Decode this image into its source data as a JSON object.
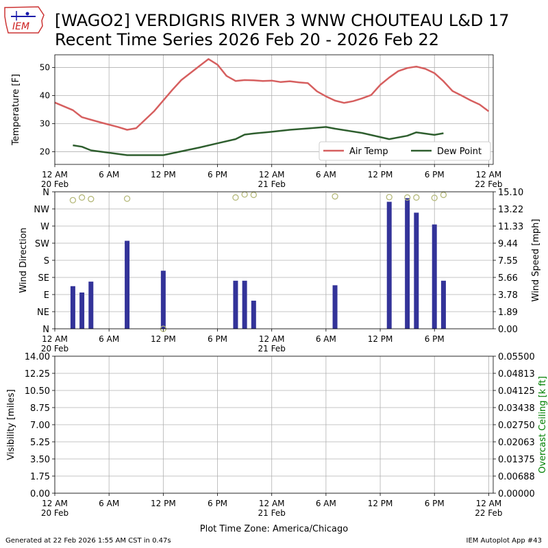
{
  "header": {
    "title_line1": "[WAGO2] VERDIGRIS RIVER 3 WNW CHOUTEAU L&D 17",
    "title_line2": "Recent Time Series 2026 Feb 20 - 2026 Feb 22",
    "logo_text": "IEM"
  },
  "footer": {
    "left": "Generated at 22 Feb 2026 1:55 AM CST in 0.47s",
    "right": "IEM Autoplot App #43"
  },
  "colors": {
    "air_temp": "#d65f5f",
    "dew_point": "#2e5e2e",
    "wind_bar": "#333399",
    "wind_dir_marker": "#b5b97a",
    "ceiling_label": "#008000",
    "grid": "#b0b0b0"
  },
  "chart_data": [
    {
      "type": "line",
      "title": "",
      "ylabel": "Temperature [F]",
      "xlim_hours": [
        0,
        48.5
      ],
      "ylim": [
        15.5,
        54.5
      ],
      "yticks": [
        20,
        30,
        40,
        50
      ],
      "grid": true,
      "legend_position": "lower-right",
      "x_tick_labels": [
        {
          "hour": 0,
          "label": "12 AM",
          "date": "20 Feb"
        },
        {
          "hour": 6,
          "label": "6 AM",
          "date": ""
        },
        {
          "hour": 12,
          "label": "12 PM",
          "date": ""
        },
        {
          "hour": 18,
          "label": "6 PM",
          "date": ""
        },
        {
          "hour": 24,
          "label": "12 AM",
          "date": "21 Feb"
        },
        {
          "hour": 30,
          "label": "6 AM",
          "date": ""
        },
        {
          "hour": 36,
          "label": "12 PM",
          "date": ""
        },
        {
          "hour": 42,
          "label": "6 PM",
          "date": ""
        },
        {
          "hour": 48,
          "label": "12 AM",
          "date": "22 Feb"
        }
      ],
      "series": [
        {
          "name": "Air Temp",
          "x_hours": [
            0,
            2,
            3,
            5,
            7,
            8,
            9,
            11,
            13,
            14,
            16,
            17,
            18,
            19,
            20,
            21,
            22,
            23,
            24,
            25,
            26,
            27,
            28,
            29,
            30,
            31,
            32,
            33,
            34,
            35,
            36,
            37,
            38,
            39,
            40,
            41,
            42,
            43,
            44,
            45,
            46,
            47,
            48
          ],
          "values": [
            37.5,
            34.8,
            32.3,
            30.5,
            28.8,
            27.8,
            28.4,
            34.5,
            42,
            45.5,
            50.5,
            53,
            51,
            47,
            45.2,
            45.5,
            45.4,
            45.2,
            45.3,
            44.8,
            45.1,
            44.7,
            44.4,
            41.5,
            39.7,
            38.2,
            37.4,
            38,
            39,
            40.2,
            43.8,
            46.4,
            48.7,
            49.8,
            50.3,
            49.5,
            48,
            45.1,
            41.6,
            40,
            38.3,
            36.8,
            34.4
          ]
        },
        {
          "name": "Dew Point",
          "x_hours": [
            2,
            3,
            4,
            8,
            12,
            16,
            18,
            20,
            21,
            22,
            24,
            26,
            28,
            30,
            31,
            34,
            37,
            39,
            40,
            42,
            43
          ],
          "values": [
            22.3,
            21.8,
            20.5,
            18.8,
            18.8,
            21.5,
            23,
            24.5,
            26.1,
            26.5,
            27.1,
            27.8,
            28.3,
            28.8,
            28.2,
            26.7,
            24.5,
            25.7,
            26.9,
            26,
            26.6
          ]
        }
      ]
    },
    {
      "type": "bar",
      "title": "",
      "ylabel": "Wind Direction",
      "y2label": "Wind Speed [mph]",
      "xlim_hours": [
        0,
        48.5
      ],
      "direction_ticks": [
        "N",
        "NE",
        "E",
        "SE",
        "S",
        "SW",
        "W",
        "NW",
        "N"
      ],
      "speed_ticks": [
        "0.00",
        "1.89",
        "3.78",
        "5.66",
        "7.55",
        "9.44",
        "11.33",
        "13.22",
        "15.10"
      ],
      "speed_ylim": [
        0,
        15.1
      ],
      "grid": true,
      "x_tick_labels": [
        {
          "hour": 0,
          "label": "12 AM",
          "date": "20 Feb"
        },
        {
          "hour": 6,
          "label": "6 AM",
          "date": ""
        },
        {
          "hour": 12,
          "label": "12 PM",
          "date": ""
        },
        {
          "hour": 18,
          "label": "6 PM",
          "date": ""
        },
        {
          "hour": 24,
          "label": "12 AM",
          "date": "21 Feb"
        },
        {
          "hour": 30,
          "label": "6 AM",
          "date": ""
        },
        {
          "hour": 36,
          "label": "12 PM",
          "date": ""
        },
        {
          "hour": 42,
          "label": "6 PM",
          "date": ""
        }
      ],
      "wind_speed": {
        "x_hours": [
          2,
          3,
          4,
          8,
          12,
          20,
          21,
          22,
          31,
          37,
          39,
          40,
          42,
          43
        ],
        "values": [
          4.7,
          4.0,
          5.2,
          9.7,
          6.4,
          5.3,
          5.3,
          3.1,
          4.8,
          14.0,
          14.4,
          12.8,
          11.5,
          5.3
        ]
      },
      "wind_direction_deg": {
        "x_hours": [
          2,
          3,
          4,
          8,
          12,
          20,
          21,
          22,
          31,
          37,
          39,
          40,
          42,
          43
        ],
        "values": [
          338,
          345,
          341,
          342,
          0,
          345,
          353,
          352,
          348,
          346,
          345,
          345,
          344,
          352
        ]
      }
    },
    {
      "type": "line",
      "title": "",
      "ylabel": "Visibility [miles]",
      "y2label": "Overcast Ceiling [k ft]",
      "xlim_hours": [
        0,
        48.5
      ],
      "ylim": [
        0,
        14
      ],
      "y2lim": [
        0,
        0.055
      ],
      "yticks": [
        "0.00",
        "1.75",
        "3.50",
        "5.25",
        "7.00",
        "8.75",
        "10.50",
        "12.25",
        "14.00"
      ],
      "y2ticks": [
        "0.00000",
        "0.00688",
        "0.01375",
        "0.02063",
        "0.02750",
        "0.03438",
        "0.04125",
        "0.04813",
        "0.05500"
      ],
      "grid": true,
      "xlabel": "Plot Time Zone: America/Chicago",
      "x_tick_labels": [
        {
          "hour": 0,
          "label": "12 AM",
          "date": "20 Feb"
        },
        {
          "hour": 6,
          "label": "6 AM",
          "date": ""
        },
        {
          "hour": 12,
          "label": "12 PM",
          "date": ""
        },
        {
          "hour": 18,
          "label": "6 PM",
          "date": ""
        },
        {
          "hour": 24,
          "label": "12 AM",
          "date": "21 Feb"
        },
        {
          "hour": 30,
          "label": "6 AM",
          "date": ""
        },
        {
          "hour": 36,
          "label": "12 PM",
          "date": ""
        },
        {
          "hour": 42,
          "label": "6 PM",
          "date": ""
        },
        {
          "hour": 48,
          "label": "12 AM",
          "date": "22 Feb"
        }
      ],
      "series": []
    }
  ]
}
